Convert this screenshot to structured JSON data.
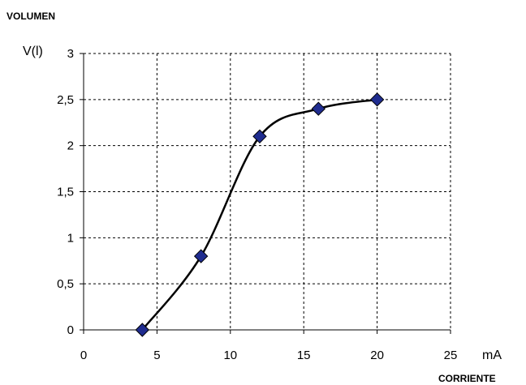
{
  "chart_data": {
    "type": "line",
    "title": "",
    "y_axis_title": "VOLUMEN",
    "y_axis_unit": "V(l)",
    "x_axis_title": "CORRIENTE",
    "x_axis_unit": "mA",
    "xlim": [
      0,
      25
    ],
    "ylim": [
      0,
      3
    ],
    "x_ticks": [
      {
        "value": 0,
        "label": "0"
      },
      {
        "value": 5,
        "label": "5"
      },
      {
        "value": 10,
        "label": "10"
      },
      {
        "value": 15,
        "label": "15"
      },
      {
        "value": 20,
        "label": "20"
      },
      {
        "value": 25,
        "label": "25"
      }
    ],
    "y_ticks": [
      {
        "value": 0,
        "label": "0"
      },
      {
        "value": 0.5,
        "label": "0,5"
      },
      {
        "value": 1,
        "label": "1"
      },
      {
        "value": 1.5,
        "label": "1,5"
      },
      {
        "value": 2,
        "label": "2"
      },
      {
        "value": 2.5,
        "label": "2,5"
      },
      {
        "value": 3,
        "label": "3"
      }
    ],
    "grid": true,
    "smooth": true,
    "marker": "diamond",
    "line_color": "#000000",
    "marker_color": "#1f2c8f",
    "series": [
      {
        "points": [
          {
            "x": 4,
            "y": 0
          },
          {
            "x": 8,
            "y": 0.8
          },
          {
            "x": 12,
            "y": 2.1
          },
          {
            "x": 16,
            "y": 2.4
          },
          {
            "x": 20,
            "y": 2.5
          }
        ]
      }
    ]
  }
}
